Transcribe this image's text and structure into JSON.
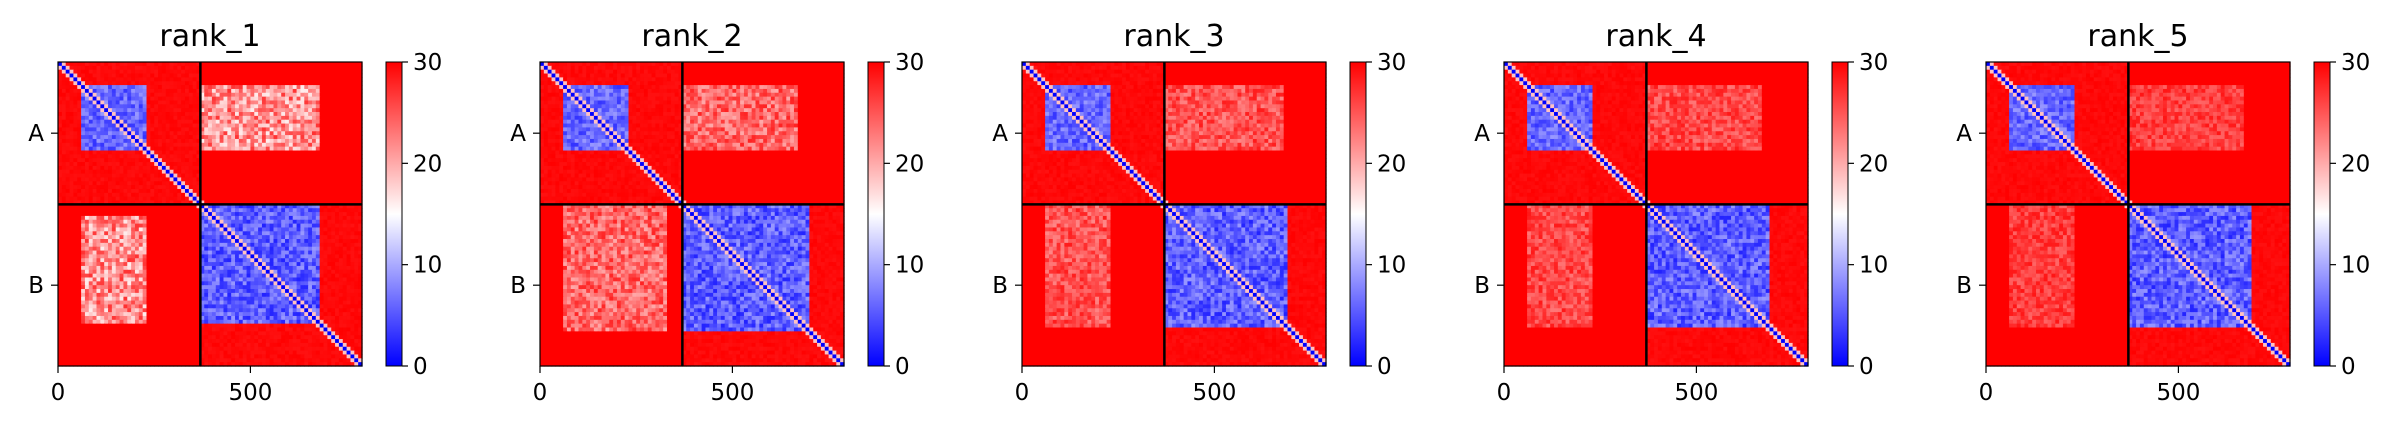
{
  "chart_data": {
    "type": "heatmap",
    "colormap": {
      "name": "bwr",
      "colors": [
        "#0000ff",
        "#ffffff",
        "#ff0000"
      ]
    },
    "value_range": [
      0,
      30
    ],
    "chains": [
      {
        "label": "A",
        "start": 0,
        "end": 370
      },
      {
        "label": "B",
        "start": 370,
        "end": 790
      }
    ],
    "total_length": 790,
    "x_ticks": [
      {
        "value": 0,
        "label": "0"
      },
      {
        "value": 500,
        "label": "500"
      }
    ],
    "y_ticks": [
      {
        "label": "A",
        "value": 185
      },
      {
        "label": "B",
        "value": 580
      }
    ],
    "colorbar_ticks": [
      {
        "value": 0,
        "label": "0"
      },
      {
        "value": 10,
        "label": "10"
      },
      {
        "value": 20,
        "label": "20"
      },
      {
        "value": 30,
        "label": "30"
      }
    ],
    "panels": [
      {
        "title": "rank_1",
        "domains": [
          [
            60,
            230
          ],
          [
            370,
            660
          ]
        ],
        "inter_chain_error": 16,
        "top_right_region": [
          370,
          680,
          60,
          230
        ],
        "bottom_left_region": [
          60,
          230,
          400,
          680
        ],
        "bottom_right_extent": 680
      },
      {
        "title": "rank_2",
        "domains": [
          [
            60,
            230
          ],
          [
            380,
            680
          ]
        ],
        "inter_chain_error": 20,
        "top_right_region": [
          370,
          670,
          60,
          230
        ],
        "bottom_left_region": [
          60,
          330,
          370,
          700
        ],
        "bottom_right_extent": 700
      },
      {
        "title": "rank_3",
        "domains": [
          [
            60,
            230
          ],
          [
            380,
            680
          ]
        ],
        "inter_chain_error": 22,
        "top_right_region": [
          370,
          680,
          60,
          230
        ],
        "bottom_left_region": [
          60,
          230,
          370,
          690
        ],
        "bottom_right_extent": 690
      },
      {
        "title": "rank_4",
        "domains": [
          [
            60,
            230
          ],
          [
            370,
            670
          ]
        ],
        "inter_chain_error": 23,
        "top_right_region": [
          370,
          670,
          60,
          230
        ],
        "bottom_left_region": [
          60,
          230,
          370,
          690
        ],
        "bottom_right_extent": 690
      },
      {
        "title": "rank_5",
        "domains": [
          [
            60,
            230
          ],
          [
            370,
            670
          ]
        ],
        "inter_chain_error": 24,
        "top_right_region": [
          370,
          670,
          60,
          230
        ],
        "bottom_left_region": [
          60,
          230,
          370,
          690
        ],
        "bottom_right_extent": 690
      }
    ]
  }
}
